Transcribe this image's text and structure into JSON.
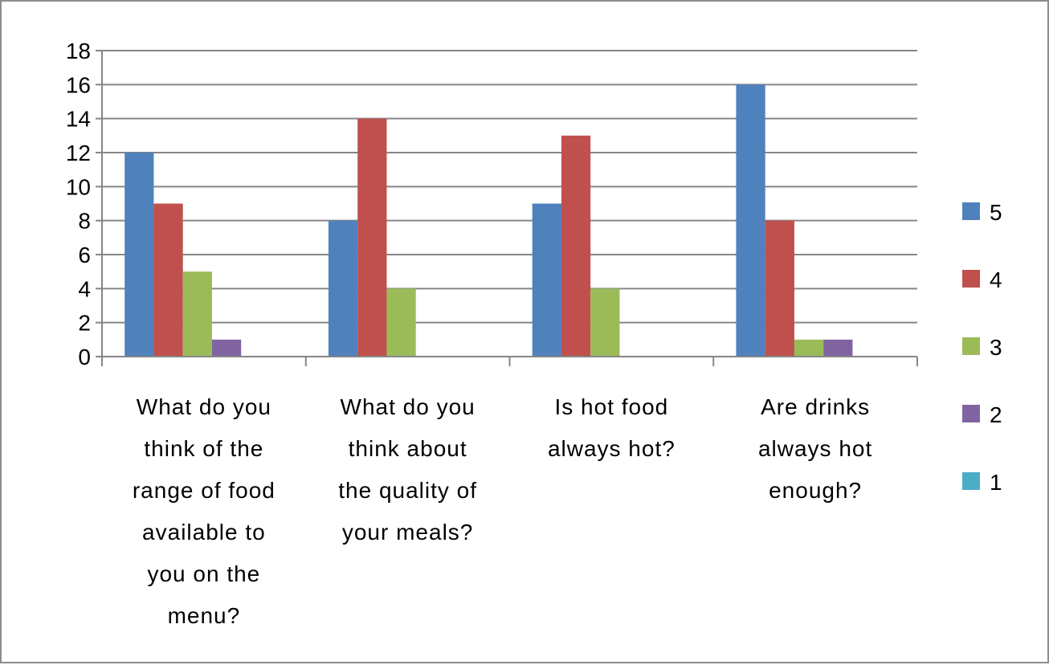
{
  "chart_data": {
    "type": "bar",
    "categories": [
      [
        "What do you",
        "think of the",
        "range of food",
        "available to",
        "you on the",
        "menu?"
      ],
      [
        "What do you",
        "think about",
        "the quality of",
        "your meals?"
      ],
      [
        "Is hot food",
        "always hot?"
      ],
      [
        "Are drinks",
        "always hot",
        "enough?"
      ]
    ],
    "series": [
      {
        "name": "5",
        "color": "#4f81bd",
        "values": [
          12,
          8,
          9,
          16
        ]
      },
      {
        "name": "4",
        "color": "#c0504d",
        "values": [
          9,
          14,
          13,
          8
        ]
      },
      {
        "name": "3",
        "color": "#9bbb59",
        "values": [
          5,
          4,
          4,
          1
        ]
      },
      {
        "name": "2",
        "color": "#8064a2",
        "values": [
          1,
          0,
          0,
          1
        ]
      },
      {
        "name": "1",
        "color": "#4bacc6",
        "values": [
          0,
          0,
          0,
          0
        ]
      }
    ],
    "ylim": [
      0,
      18
    ],
    "yticks": [
      0,
      2,
      4,
      6,
      8,
      10,
      12,
      14,
      16,
      18
    ],
    "grid": true,
    "legend": "right",
    "gridline_color": "#868686"
  }
}
